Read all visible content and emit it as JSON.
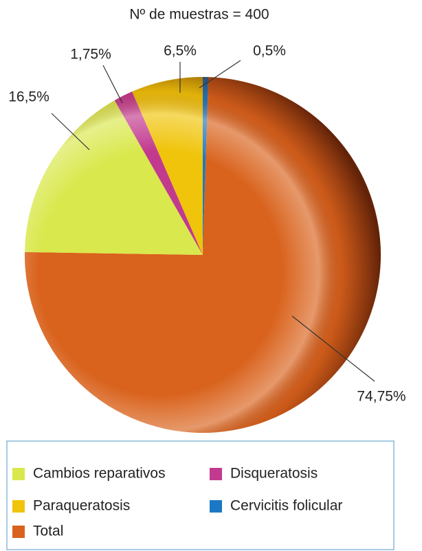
{
  "chart_data": {
    "type": "pie",
    "title": "Nº de muestras = 400",
    "categories": [
      "Cervicitis folicular",
      "Total",
      "Cambios reparativos",
      "Disqueratosis",
      "Paraqueratosis"
    ],
    "values": [
      0.5,
      74.75,
      16.5,
      1.75,
      6.5
    ],
    "value_labels": [
      "0,5%",
      "74,75%",
      "16,5%",
      "1,75%",
      "6,5%"
    ],
    "colors": [
      "#1c78c4",
      "#d9621c",
      "#d9e84c",
      "#c23a8e",
      "#f0c40a"
    ],
    "direction": "clockwise",
    "start": "top"
  }
}
